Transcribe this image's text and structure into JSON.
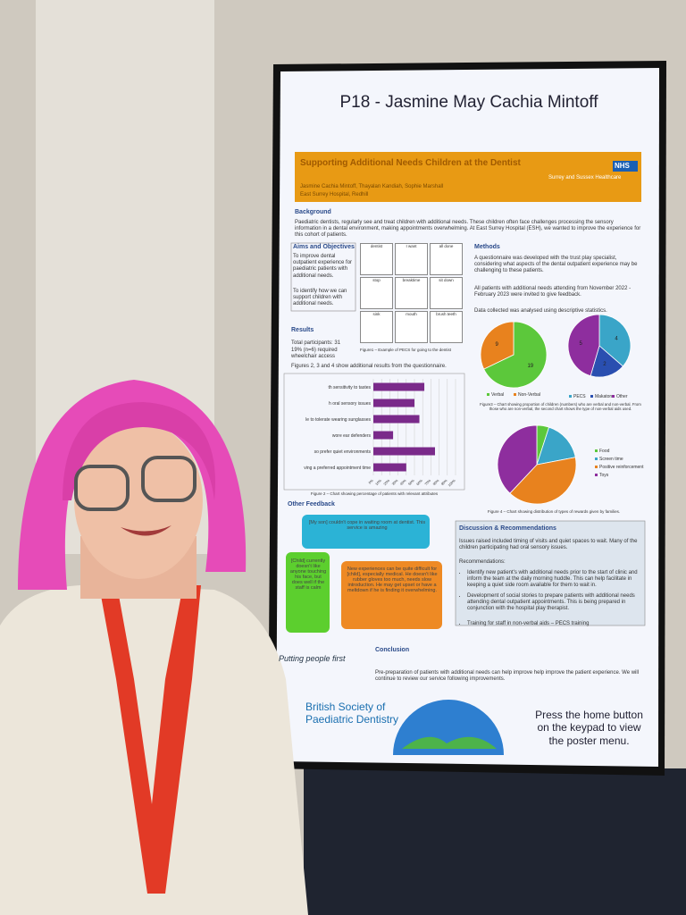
{
  "poster": {
    "title": "P18 - Jasmine May Cachia Mintoff",
    "banner": {
      "title": "Supporting Additional Needs Children at the Dentist",
      "authors": "Jasmine Cachia Mintoff, Thayalan Kandiah, Sophie Marshall",
      "site": "East Surrey Hospital, Redhill",
      "nhs": "NHS",
      "trust": "Surrey and Sussex Healthcare"
    },
    "background": {
      "heading": "Background",
      "text": "Paediatric dentists, regularly see and treat children with additional needs. These children often face challenges processing the sensory information in a dental environment, making appointments overwhelming. At East Surrey Hospital (ESH), we wanted to improve the experience for this cohort of patients."
    },
    "aims": {
      "heading": "Aims and Objectives",
      "items": [
        "To improve dental outpatient experience for paediatric patients with additional needs.",
        "To identify how we can support children with additional needs."
      ]
    },
    "pecs": {
      "cards": [
        "dentist",
        "I want",
        "all done",
        "stop",
        "breaktime",
        "sit down",
        "sink",
        "mouth",
        "brush teeth"
      ],
      "caption": "Figure1 – Example of PECS for going to the dentist"
    },
    "methods": {
      "heading": "Methods",
      "items": [
        "A questionnaire was developed with the trust play specialist, considering what aspects of the dental outpatient experience may be challenging to these patients.",
        "All patients with additional needs attending from November 2022 - February 2023 were invited to give feedback.",
        "Data collected was analysed using descriptive statistics."
      ]
    },
    "results": {
      "heading": "Results",
      "items": [
        "Total participants: 31",
        "19% (n=6) required wheelchair access",
        "Figures 2, 3 and 4 show additional results from the questionnaire."
      ]
    },
    "bar_chart": {
      "type": "bar",
      "categories": [
        "th sensitivity to tastes",
        "h oral sensory issues",
        "le to tolerate wearing sunglasses",
        "wore ear defenders",
        "so prefer quiet environments",
        "ving a preferred appointment time"
      ],
      "values": [
        62,
        50,
        56,
        24,
        75,
        40
      ],
      "color": "#7a2a8a",
      "xlim": [
        0,
        100
      ],
      "xticks": [
        {
          "value": 0,
          "label": "0%"
        },
        {
          "value": 10,
          "label": "10%"
        },
        {
          "value": 20,
          "label": "20%"
        },
        {
          "value": 30,
          "label": "30%"
        },
        {
          "value": 40,
          "label": "40%"
        },
        {
          "value": 50,
          "label": "50%"
        },
        {
          "value": 60,
          "label": "60%"
        },
        {
          "value": 70,
          "label": "70%"
        },
        {
          "value": 80,
          "label": "80%"
        },
        {
          "value": 90,
          "label": "90%"
        },
        {
          "value": 100,
          "label": "100%"
        }
      ],
      "grid": true,
      "caption": "Figure 2 – Chart showing percentage of patients with relevant attributes"
    },
    "pie_verbal": {
      "type": "pie",
      "categories": [
        "Verbal",
        "Non-Verbal"
      ],
      "values": [
        19,
        9
      ],
      "colors": [
        "#5cc83b",
        "#e8821e"
      ]
    },
    "pie_nonverbal": {
      "type": "pie",
      "categories": [
        "PECS",
        "Makaton",
        "Other"
      ],
      "values": [
        4,
        2,
        5
      ],
      "colors": [
        "#3aa5c8",
        "#2a4fb0",
        "#8e2e9e"
      ]
    },
    "pie_caption": "Figure3 – Chart showing proportion of children (numbers) who are verbal and non-verbal. From those who are non-verbal, the second chart shows the type of non-verbal aids used.",
    "pie_rewards": {
      "type": "pie",
      "categories": [
        "Food",
        "Screen time",
        "Positive reinforcement",
        "Toys"
      ],
      "values": [
        5,
        17,
        40,
        38
      ],
      "colors": [
        "#5cc83b",
        "#3aa5c8",
        "#e8821e",
        "#8e2e9e"
      ],
      "caption": "Figure 4 – Chart showing distribution of types of rewards given by families."
    },
    "feedback": {
      "heading": "Other Feedback",
      "quotes": [
        "[My son] couldn't cope in waiting room at dentist. This service is amazing",
        "[Child] currently doesn't like anyone touching his face, but does well if the staff is calm",
        "New experiences can be quite difficult for [child], especially medical. He doesn't like rubber gloves too much, needs slow introduction. He may get upset or have a meltdown if he is finding it overwhelming."
      ]
    },
    "discussion": {
      "heading": "Discussion & Recommendations",
      "intro": "Issues raised included timing of visits and quiet spaces to wait. Many of the children participating had oral sensory issues.",
      "sub": "Recommendations:",
      "items": [
        "Identify new patient's with additional needs prior to the start of clinic and inform the team at the daily morning huddle. This can help facilitate in keeping a quiet side room available for them to wait in.",
        "Development of social stories to prepare patients with additional needs attending dental outpatient appointments. This is being prepared in conjunction with the hospital play therapist.",
        "Training for staff in non-verbal aids – PECS training"
      ]
    },
    "conclusion": {
      "heading": "Conclusion",
      "text": "Pre-preparation of patients with additional needs can help improve help improve the patient experience. We will continue to review our service following improvements."
    },
    "footer": {
      "putting": "Putting people first",
      "bspd": "British Society of Paediatric Dentistry",
      "press": "Press the home button on the keypad to view the poster menu."
    }
  }
}
